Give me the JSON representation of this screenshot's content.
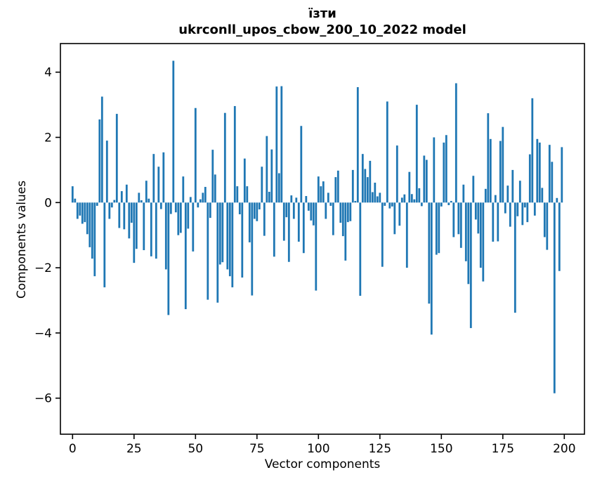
{
  "figure": {
    "title_line1": "їзти",
    "title_line2": "ukrconll_upos_cbow_200_10_2022 model"
  },
  "chart_data": {
    "type": "bar",
    "title": "їзти\nukrconll_upos_cbow_200_10_2022 model",
    "xlabel": "Vector components",
    "ylabel": "Components values",
    "x_ticks": [
      0,
      25,
      50,
      75,
      100,
      125,
      150,
      175,
      200
    ],
    "y_ticks": [
      4,
      2,
      0,
      -2,
      -4,
      -6
    ],
    "xlim": [
      -5,
      208
    ],
    "ylim": [
      -7.1,
      4.88
    ],
    "grid": false,
    "legend": false,
    "bar_color": "#1f77b4",
    "x_start": 0,
    "values": [
      0.5,
      0.12,
      -0.5,
      -0.4,
      -0.65,
      -0.6,
      -0.97,
      -1.37,
      -1.72,
      -2.26,
      -0.1,
      2.55,
      3.25,
      -2.6,
      1.9,
      -0.5,
      -0.15,
      0.08,
      2.72,
      -0.78,
      0.35,
      -0.82,
      0.55,
      -1.1,
      -0.62,
      -1.85,
      -1.42,
      0.3,
      0.07,
      -1.46,
      0.67,
      0.12,
      -1.65,
      1.49,
      -1.72,
      1.1,
      -0.2,
      1.54,
      -2.05,
      -3.45,
      -0.35,
      4.35,
      -0.3,
      -1.0,
      -0.93,
      0.8,
      -3.27,
      -0.8,
      0.17,
      -1.5,
      2.9,
      -0.15,
      0.1,
      0.3,
      0.48,
      -2.98,
      -0.47,
      1.62,
      0.86,
      -3.07,
      -1.9,
      -1.83,
      2.75,
      -2.05,
      -2.26,
      -2.6,
      2.96,
      0.5,
      -0.36,
      -2.3,
      1.35,
      0.5,
      -1.22,
      -2.85,
      -0.5,
      -0.57,
      -0.21,
      1.1,
      -1.02,
      2.04,
      0.33,
      1.63,
      -1.66,
      3.56,
      0.9,
      3.57,
      -1.17,
      -0.45,
      -1.82,
      0.22,
      -0.5,
      0.15,
      -1.2,
      2.35,
      -1.55,
      0.2,
      -0.25,
      -0.55,
      -0.7,
      -2.7,
      0.8,
      0.5,
      0.65,
      -0.5,
      0.3,
      -0.1,
      -1.0,
      0.78,
      0.98,
      -0.62,
      -1.03,
      -1.78,
      -0.6,
      -0.57,
      1.0,
      0.05,
      3.54,
      -2.86,
      1.49,
      1.03,
      0.78,
      1.28,
      0.32,
      0.61,
      0.19,
      0.3,
      -1.97,
      -0.1,
      3.1,
      -0.18,
      -0.12,
      -0.97,
      1.75,
      -0.71,
      0.15,
      0.25,
      -2.0,
      0.94,
      0.26,
      0.1,
      3.0,
      0.44,
      -0.11,
      1.44,
      1.31,
      -3.1,
      -4.05,
      2.0,
      -1.6,
      -1.55,
      -0.12,
      1.84,
      2.07,
      -0.08,
      0.05,
      -1.06,
      3.66,
      -0.97,
      -1.39,
      0.55,
      -1.8,
      -2.5,
      -3.85,
      0.82,
      -0.52,
      -0.95,
      -2.0,
      -2.42,
      0.42,
      2.74,
      1.95,
      -1.2,
      0.23,
      -1.19,
      1.89,
      2.32,
      -0.33,
      0.52,
      -0.74,
      1.0,
      -3.38,
      -0.42,
      0.67,
      -0.69,
      -0.15,
      -0.6,
      1.48,
      3.2,
      -0.4,
      1.95,
      1.84,
      0.45,
      -1.06,
      -1.45,
      1.77,
      1.25,
      -5.85,
      0.14,
      -2.1,
      1.7
    ]
  }
}
